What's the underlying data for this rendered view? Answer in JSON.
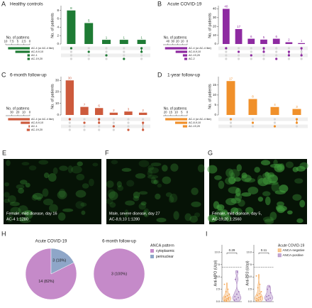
{
  "panel_labels": [
    "A",
    "B",
    "C",
    "D",
    "E",
    "F",
    "G",
    "H",
    "I"
  ],
  "chart_data": [
    {
      "type": "upset",
      "title": "Healthy controls",
      "color": "#1e7b34",
      "ylabel": "No. of patients",
      "values": [
        8,
        5,
        1,
        1,
        1
      ],
      "intersections": [
        [
          0
        ],
        [
          1
        ],
        [
          2
        ],
        [
          3
        ],
        [
          0,
          1
        ]
      ],
      "sets": [
        "AC-4 (or AC-4 like)",
        "AC-8,9,10",
        "AC-1",
        "AC-19,20"
      ],
      "set_sizes": [
        9,
        6,
        1,
        1
      ],
      "ylim": [
        0,
        8.8
      ],
      "yticks": [
        0,
        2,
        4,
        6,
        8
      ],
      "set_axis_label": "No. of patterns",
      "set_xlim": [
        10,
        0
      ],
      "set_xticks": [
        10,
        7.5,
        5,
        2.5,
        0
      ]
    },
    {
      "type": "upset",
      "title": "Acute COVID-19",
      "color": "#8e2aa1",
      "ylabel": "No. of patients",
      "values": [
        40,
        17,
        6,
        5,
        6,
        2,
        1
      ],
      "intersections": [
        [
          0
        ],
        [
          1
        ],
        [
          2
        ],
        [
          0,
          1
        ],
        [
          3
        ],
        [
          1,
          2
        ],
        [
          0,
          2
        ]
      ],
      "sets": [
        "AC-4 (or AC-4 like)",
        "AC-8,9,10",
        "AC-19,20",
        "AC-2"
      ],
      "set_sizes": [
        46,
        24,
        9,
        6
      ],
      "ylim": [
        0,
        42
      ],
      "yticks": [
        0,
        10,
        20,
        30,
        40
      ],
      "set_axis_label": "No. of patterns",
      "set_xlim": [
        50,
        0
      ],
      "set_xticks": [
        40,
        30,
        20,
        10,
        0
      ]
    },
    {
      "type": "upset",
      "title": "6-month follow-up",
      "color": "#cd5a3c",
      "ylabel": "No. of patients",
      "values": [
        30,
        7,
        6,
        2,
        3,
        2
      ],
      "intersections": [
        [
          0
        ],
        [
          1
        ],
        [
          0,
          1
        ],
        [
          2
        ],
        [
          3
        ],
        [
          1,
          3
        ]
      ],
      "sets": [
        "AC-4 (or AC-4 like)",
        "AC-8,9,10",
        "AC-1",
        "AC-19,20"
      ],
      "set_sizes": [
        36,
        15,
        2,
        5
      ],
      "ylim": [
        0,
        32
      ],
      "yticks": [
        0,
        10,
        20,
        30
      ],
      "set_axis_label": "No. of patterns",
      "set_xlim": [
        40,
        0
      ],
      "set_xticks": [
        30,
        20,
        10,
        0
      ]
    },
    {
      "type": "upset",
      "title": "1-year follow-up",
      "color": "#f0902a",
      "ylabel": "No. of patients",
      "values": [
        17,
        8,
        4,
        3
      ],
      "intersections": [
        [
          0
        ],
        [
          1
        ],
        [
          2
        ],
        [
          0,
          1
        ]
      ],
      "sets": [
        "AC-4 (or AC-4 like)",
        "AC-8,9,10",
        "AC-19,20"
      ],
      "set_sizes": [
        20,
        11,
        4
      ],
      "ylim": [
        0,
        18.5
      ],
      "yticks": [
        0,
        5,
        10,
        15
      ],
      "set_axis_label": "No. of patterns",
      "set_xlim": [
        22,
        0
      ],
      "set_xticks": [
        20,
        15,
        10,
        5,
        0
      ]
    },
    {
      "type": "image",
      "caption": [
        "Female, mild disease, day 16",
        "AC-4 1:1280"
      ]
    },
    {
      "type": "image",
      "caption": [
        "Male, severe disease, day 27",
        "AC-8,9,10 1:1280"
      ]
    },
    {
      "type": "image",
      "caption": [
        "Female, mild disease, day 5,",
        "AC-19,20 1:2560"
      ]
    },
    {
      "type": "pie",
      "title": "Acute COVID-19",
      "categories": [
        "cytoplasmic",
        "perinuclear"
      ],
      "colors": [
        "#c58ac9",
        "#8ea6c8"
      ],
      "values": [
        14,
        3
      ],
      "value_labels": [
        "14 (82%)",
        "3 (18%)"
      ],
      "legend_title": "ANCA pattern"
    },
    {
      "type": "pie",
      "title": "6-month follow-up",
      "categories": [
        "cytoplasmic"
      ],
      "colors": [
        "#c58ac9"
      ],
      "values": [
        3
      ],
      "value_labels": [
        "3 (100%)"
      ]
    },
    {
      "type": "violin",
      "ylabel": "Anti-MPO (U/ml)",
      "annotation": "0.29",
      "threshold": 7,
      "ylim": [
        0,
        11.5
      ],
      "yticks": [
        {
          "value": 0,
          "label": "0.0"
        },
        {
          "value": 2.5,
          "label": "2.5"
        },
        {
          "value": 5,
          "label": "5.0"
        },
        {
          "value": 7.5,
          "label": "7.5"
        },
        {
          "value": 10,
          "label": "10.0"
        }
      ],
      "series": [
        {
          "name": "ANCA-negative",
          "color": "#f4a14a",
          "values": [
            0.2,
            0.3,
            0.4,
            0.5,
            0.6,
            0.8,
            1,
            1.2,
            1.5,
            2,
            2.5,
            3.5,
            0.1,
            0.7,
            0.9
          ]
        },
        {
          "name": "ANCA-positive",
          "color": "#9b6fb6",
          "values": [
            0.3,
            0.5,
            0.8,
            1,
            1.5,
            2,
            4.5,
            6
          ]
        }
      ]
    },
    {
      "type": "violin",
      "ylabel": "Anti-PR3 (U/ml)",
      "annotation": "0.11",
      "threshold": 7,
      "ylim": [
        0,
        11.5
      ],
      "yticks": [
        {
          "value": 0,
          "label": "0.0"
        },
        {
          "value": 2.5,
          "label": "2.5"
        },
        {
          "value": 5,
          "label": "5.0"
        },
        {
          "value": 7.5,
          "label": "7.5"
        },
        {
          "value": 10,
          "label": "10.0"
        }
      ],
      "legend_title": "Acute COVID-19",
      "series": [
        {
          "name": "ANCA-negative",
          "color": "#f4a14a",
          "values": [
            0.2,
            0.3,
            0.5,
            0.6,
            0.8,
            1,
            1.3,
            1.6,
            2,
            2.8,
            3.5,
            5.2,
            0.4,
            0.9
          ]
        },
        {
          "name": "ANCA-positive",
          "color": "#9b6fb6",
          "values": [
            0.3,
            0.5,
            0.7,
            1,
            1.2,
            1.8,
            2.5,
            3
          ]
        }
      ]
    }
  ]
}
